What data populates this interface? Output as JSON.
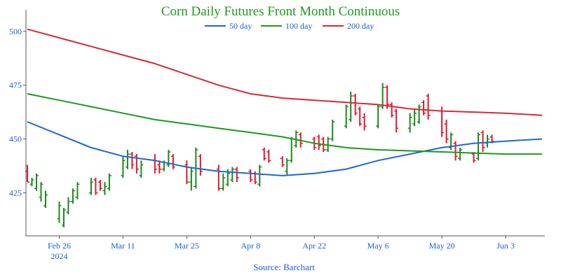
{
  "chart_data": {
    "type": "line",
    "title": "Corn Daily Futures Front Month Continuous",
    "source": "Source: Barchart",
    "ylim": [
      405,
      510
    ],
    "y_ticks": [
      425,
      450,
      475,
      500
    ],
    "x_ticks": [
      {
        "date": "2024-02-26",
        "label": "Feb 26",
        "sub": "2024"
      },
      {
        "date": "2024-03-11",
        "label": "Mar 11",
        "sub": ""
      },
      {
        "date": "2024-03-25",
        "label": "Mar 25",
        "sub": ""
      },
      {
        "date": "2024-04-08",
        "label": "Apr 8",
        "sub": ""
      },
      {
        "date": "2024-04-22",
        "label": "Apr 22",
        "sub": ""
      },
      {
        "date": "2024-05-06",
        "label": "May 6",
        "sub": ""
      },
      {
        "date": "2024-05-20",
        "label": "May 20",
        "sub": ""
      },
      {
        "date": "2024-06-03",
        "label": "Jun 3",
        "sub": ""
      }
    ],
    "xlim": [
      "2024-02-19",
      "2024-06-11"
    ],
    "grid": false,
    "legend_position": "top-center",
    "colors": {
      "up": "#1b8a1b",
      "down": "#e0182d"
    },
    "series": [
      {
        "name": "50 day",
        "color": "#1f66d6",
        "points": [
          [
            "2024-02-19",
            458
          ],
          [
            "2024-02-26",
            452
          ],
          [
            "2024-03-04",
            446
          ],
          [
            "2024-03-11",
            442
          ],
          [
            "2024-03-18",
            440
          ],
          [
            "2024-03-25",
            437
          ],
          [
            "2024-04-01",
            435
          ],
          [
            "2024-04-08",
            434
          ],
          [
            "2024-04-15",
            433
          ],
          [
            "2024-04-22",
            434
          ],
          [
            "2024-04-29",
            436
          ],
          [
            "2024-05-06",
            440
          ],
          [
            "2024-05-13",
            443
          ],
          [
            "2024-05-20",
            446
          ],
          [
            "2024-05-27",
            448
          ],
          [
            "2024-06-03",
            449
          ],
          [
            "2024-06-11",
            450
          ]
        ]
      },
      {
        "name": "100 day",
        "color": "#1c9a1c",
        "points": [
          [
            "2024-02-19",
            471
          ],
          [
            "2024-02-26",
            468
          ],
          [
            "2024-03-04",
            465
          ],
          [
            "2024-03-11",
            462
          ],
          [
            "2024-03-18",
            459
          ],
          [
            "2024-03-25",
            457
          ],
          [
            "2024-04-01",
            455
          ],
          [
            "2024-04-08",
            453
          ],
          [
            "2024-04-15",
            451
          ],
          [
            "2024-04-22",
            448
          ],
          [
            "2024-04-29",
            446
          ],
          [
            "2024-05-06",
            445
          ],
          [
            "2024-05-13",
            444.5
          ],
          [
            "2024-05-20",
            444
          ],
          [
            "2024-05-27",
            443.5
          ],
          [
            "2024-06-03",
            443
          ],
          [
            "2024-06-11",
            443
          ]
        ]
      },
      {
        "name": "200 day",
        "color": "#d42a3a",
        "points": [
          [
            "2024-02-19",
            501
          ],
          [
            "2024-02-26",
            497
          ],
          [
            "2024-03-04",
            493
          ],
          [
            "2024-03-11",
            489
          ],
          [
            "2024-03-18",
            485
          ],
          [
            "2024-03-25",
            480
          ],
          [
            "2024-04-01",
            475
          ],
          [
            "2024-04-08",
            471
          ],
          [
            "2024-04-15",
            469
          ],
          [
            "2024-04-22",
            468
          ],
          [
            "2024-04-29",
            467
          ],
          [
            "2024-05-06",
            466
          ],
          [
            "2024-05-13",
            464
          ],
          [
            "2024-05-20",
            463
          ],
          [
            "2024-05-27",
            462.5
          ],
          [
            "2024-06-03",
            462
          ],
          [
            "2024-06-11",
            461
          ]
        ]
      }
    ],
    "ohlc": [
      [
        "2024-02-19",
        438,
        430,
        435,
        430
      ],
      [
        "2024-02-20",
        432,
        428,
        429,
        431
      ],
      [
        "2024-02-21",
        434,
        426,
        427,
        433
      ],
      [
        "2024-02-22",
        430,
        421,
        423,
        429
      ],
      [
        "2024-02-23",
        426,
        418,
        419,
        424
      ],
      [
        "2024-02-26",
        421,
        411,
        413,
        419
      ],
      [
        "2024-02-27",
        418,
        409,
        410,
        417
      ],
      [
        "2024-02-28",
        423,
        415,
        416,
        421
      ],
      [
        "2024-02-29",
        427,
        420,
        421,
        426
      ],
      [
        "2024-03-01",
        430,
        422,
        423,
        429
      ],
      [
        "2024-03-04",
        432,
        424,
        425,
        430
      ],
      [
        "2024-03-05",
        432,
        424,
        431,
        425
      ],
      [
        "2024-03-06",
        431,
        426,
        430,
        427
      ],
      [
        "2024-03-07",
        430,
        424,
        426,
        428
      ],
      [
        "2024-03-08",
        434,
        426,
        427,
        433
      ],
      [
        "2024-03-11",
        442,
        432,
        433,
        440
      ],
      [
        "2024-03-12",
        445,
        436,
        437,
        443
      ],
      [
        "2024-03-13",
        444,
        436,
        443,
        438
      ],
      [
        "2024-03-14",
        443,
        434,
        442,
        436
      ],
      [
        "2024-03-15",
        440,
        432,
        433,
        438
      ],
      [
        "2024-03-18",
        443,
        434,
        440,
        436
      ],
      [
        "2024-03-19",
        440,
        434,
        438,
        436
      ],
      [
        "2024-03-20",
        440,
        435,
        436,
        439
      ],
      [
        "2024-03-21",
        445,
        437,
        438,
        444
      ],
      [
        "2024-03-22",
        443,
        436,
        442,
        437
      ],
      [
        "2024-03-25",
        440,
        429,
        438,
        430
      ],
      [
        "2024-03-26",
        437,
        426,
        430,
        435
      ],
      [
        "2024-03-27",
        446,
        427,
        428,
        445
      ],
      [
        "2024-03-28",
        443,
        433,
        442,
        435
      ],
      [
        "2024-04-01",
        438,
        426,
        436,
        427
      ],
      [
        "2024-04-02",
        434,
        426,
        427,
        432
      ],
      [
        "2024-04-03",
        436,
        428,
        429,
        434
      ],
      [
        "2024-04-04",
        437,
        430,
        431,
        436
      ],
      [
        "2024-04-05",
        437,
        430,
        436,
        432
      ],
      [
        "2024-04-08",
        436,
        430,
        435,
        431
      ],
      [
        "2024-04-09",
        435,
        429,
        434,
        430
      ],
      [
        "2024-04-10",
        438,
        428,
        429,
        437
      ],
      [
        "2024-04-11",
        446,
        440,
        445,
        441
      ],
      [
        "2024-04-12",
        445,
        439,
        444,
        440
      ],
      [
        "2024-04-15",
        442,
        437,
        441,
        438
      ],
      [
        "2024-04-16",
        441,
        433,
        435,
        440
      ],
      [
        "2024-04-17",
        451,
        439,
        440,
        450
      ],
      [
        "2024-04-18",
        454,
        446,
        447,
        453
      ],
      [
        "2024-04-19",
        453,
        446,
        452,
        448
      ],
      [
        "2024-04-22",
        451,
        445,
        450,
        446
      ],
      [
        "2024-04-23",
        452,
        445,
        451,
        447
      ],
      [
        "2024-04-24",
        451,
        444,
        450,
        445
      ],
      [
        "2024-04-25",
        451,
        444,
        445,
        450
      ],
      [
        "2024-04-26",
        459,
        449,
        450,
        458
      ],
      [
        "2024-04-29",
        466,
        455,
        456,
        465
      ],
      [
        "2024-04-30",
        472,
        458,
        459,
        470
      ],
      [
        "2024-05-01",
        471,
        461,
        470,
        462
      ],
      [
        "2024-05-02",
        465,
        456,
        464,
        457
      ],
      [
        "2024-05-03",
        462,
        454,
        460,
        456
      ],
      [
        "2024-05-06",
        466,
        455,
        456,
        465
      ],
      [
        "2024-05-07",
        476,
        464,
        465,
        474
      ],
      [
        "2024-05-08",
        475,
        464,
        474,
        466
      ],
      [
        "2024-05-09",
        467,
        460,
        466,
        461
      ],
      [
        "2024-05-10",
        464,
        453,
        463,
        455
      ],
      [
        "2024-05-13",
        462,
        453,
        455,
        460
      ],
      [
        "2024-05-14",
        464,
        456,
        457,
        462
      ],
      [
        "2024-05-15",
        466,
        457,
        458,
        465
      ],
      [
        "2024-05-16",
        468,
        461,
        467,
        462
      ],
      [
        "2024-05-17",
        471,
        459,
        470,
        461
      ],
      [
        "2024-05-20",
        465,
        451,
        463,
        453
      ],
      [
        "2024-05-21",
        459,
        448,
        457,
        450
      ],
      [
        "2024-05-22",
        453,
        445,
        446,
        452
      ],
      [
        "2024-05-23",
        449,
        440,
        448,
        442
      ],
      [
        "2024-05-24",
        446,
        440,
        441,
        445
      ],
      [
        "2024-05-27",
        444,
        439,
        443,
        440
      ],
      [
        "2024-05-28",
        453,
        440,
        441,
        452
      ],
      [
        "2024-05-29",
        454,
        444,
        453,
        446
      ],
      [
        "2024-05-30",
        452,
        446,
        448,
        450
      ],
      [
        "2024-05-31",
        452,
        448,
        451,
        449
      ]
    ]
  }
}
